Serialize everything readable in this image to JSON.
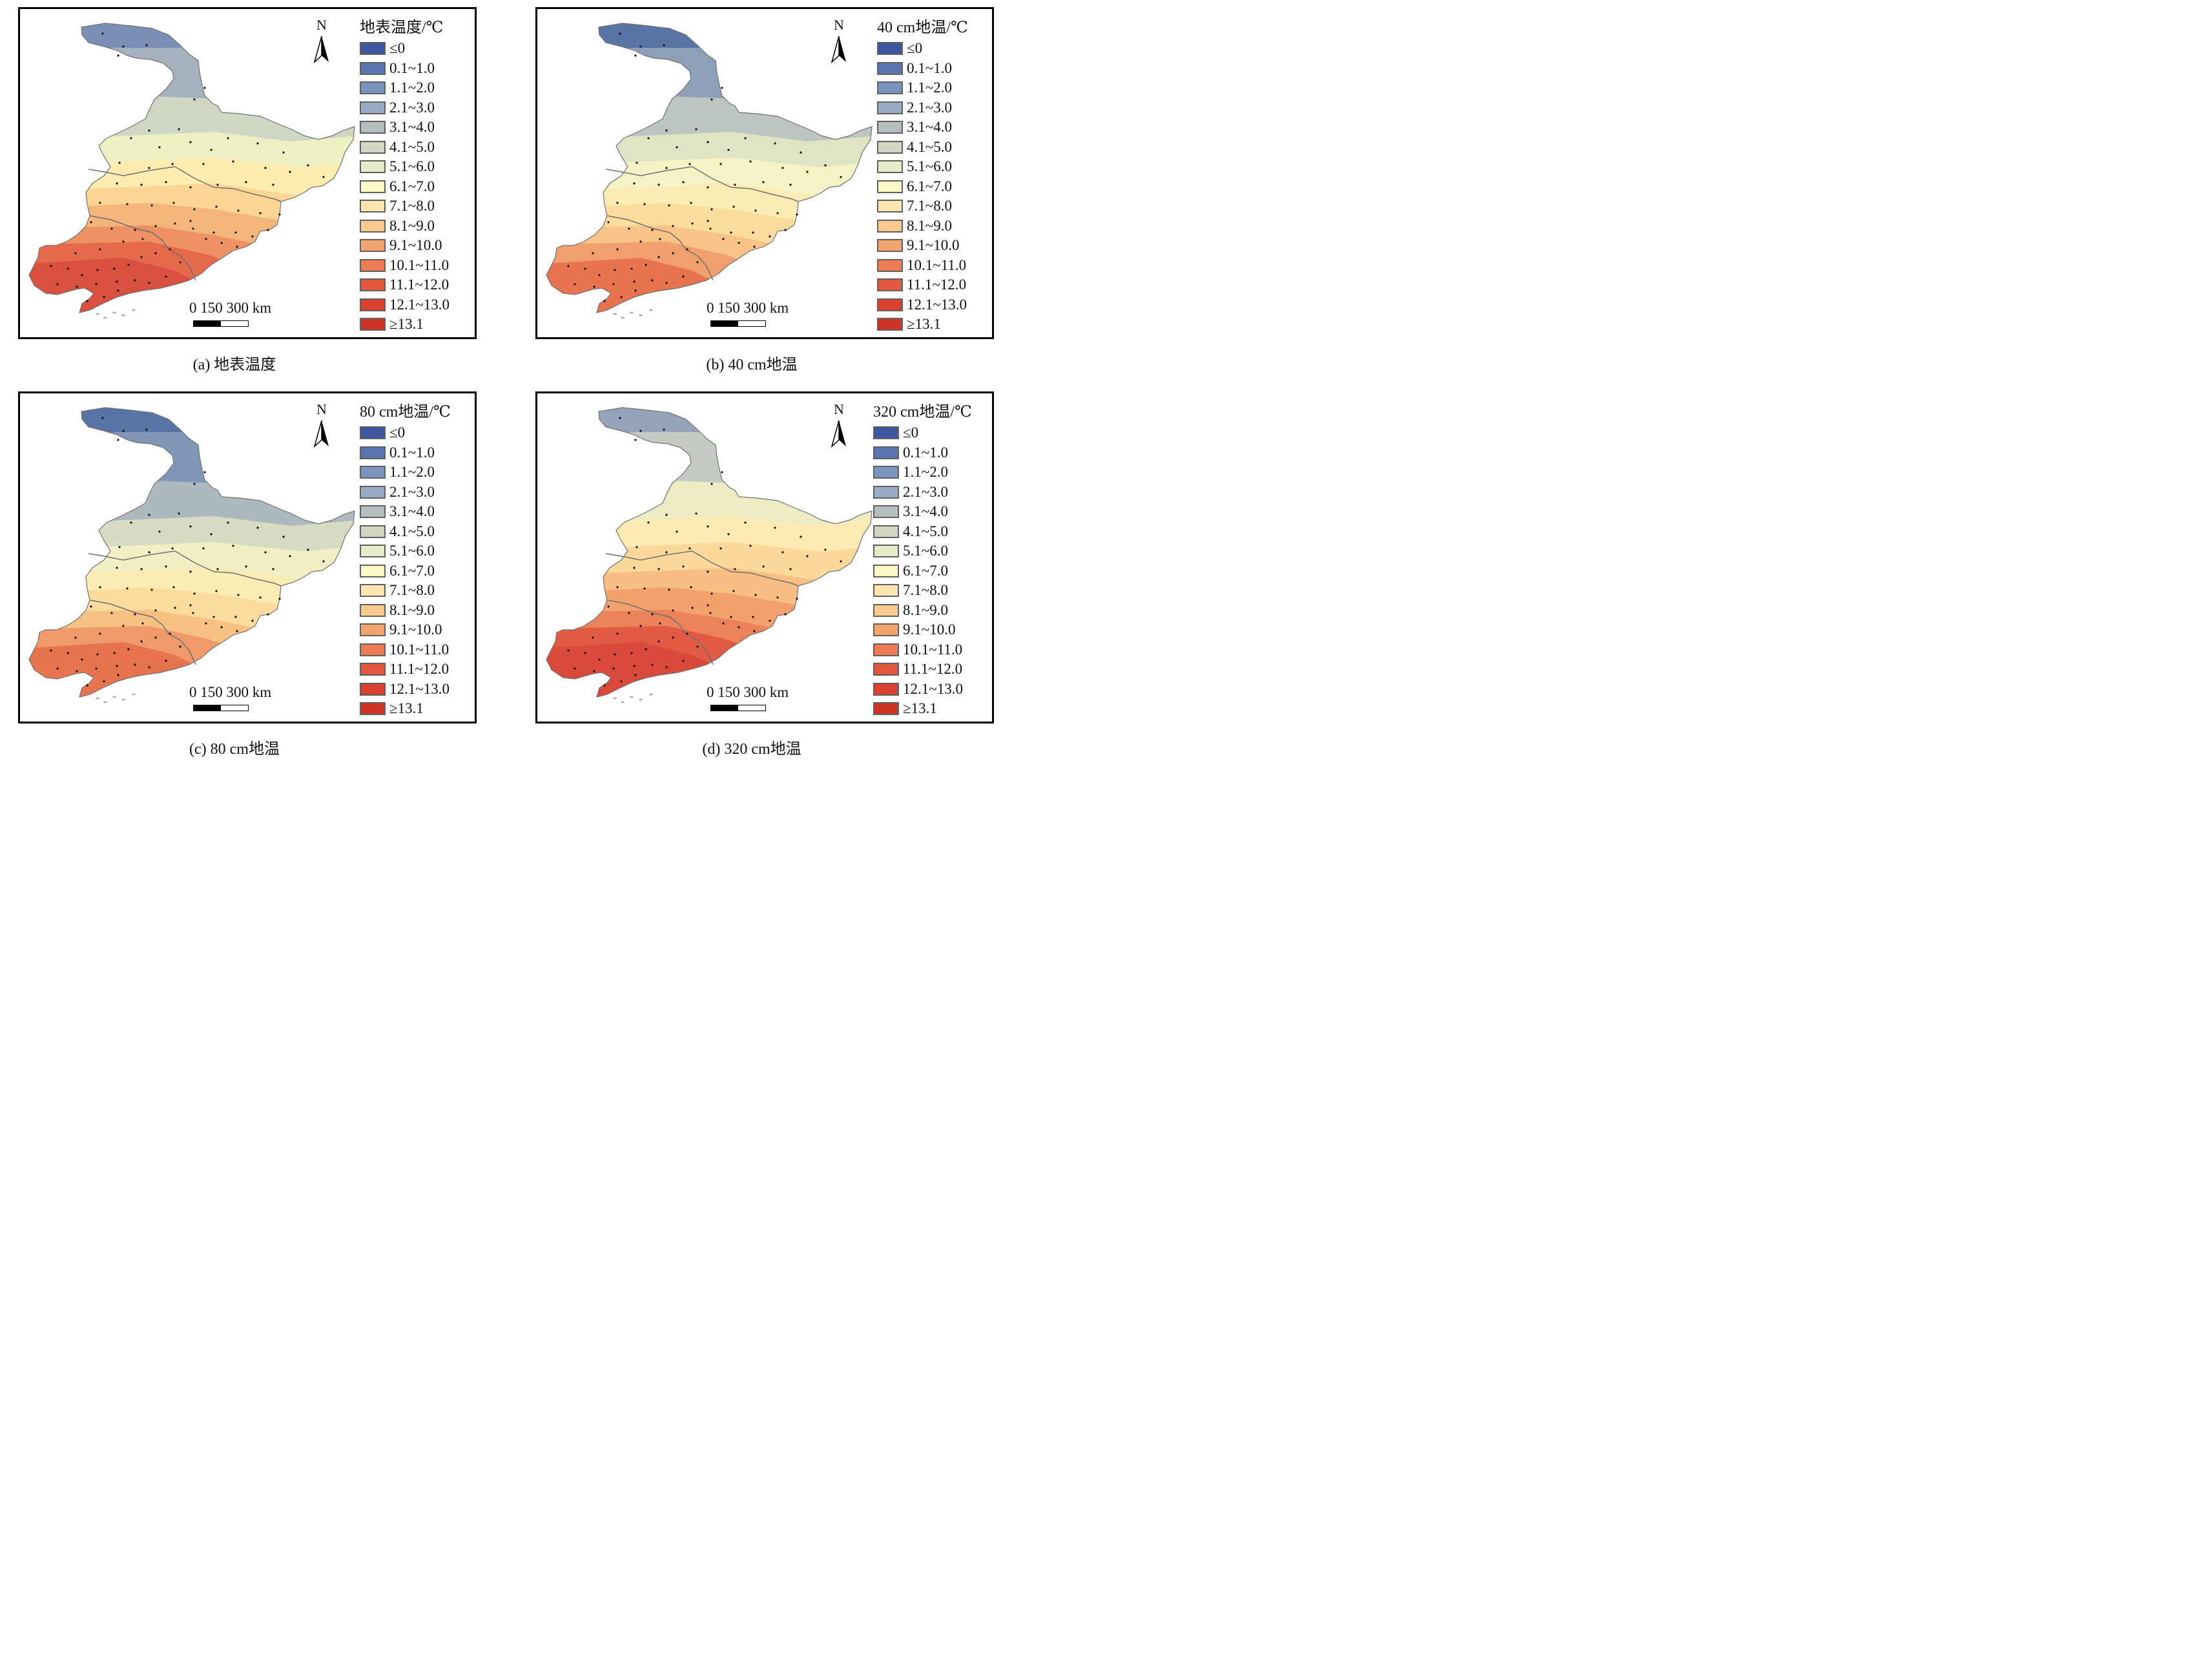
{
  "panels": [
    {
      "id": "a",
      "legend_title": "地表温度/℃",
      "caption": "(a) 地表温度",
      "zone_colors": [
        "#7a8fb3",
        "#a6b1be",
        "#cfd6c4",
        "#eef0c4",
        "#fcecb0",
        "#fbd594",
        "#f4b57a",
        "#ee9164",
        "#e56a4c",
        "#d9503f"
      ]
    },
    {
      "id": "b",
      "legend_title": "40 cm地温/℃",
      "caption": "(b) 40 cm地温",
      "zone_colors": [
        "#5873a6",
        "#8e9fb8",
        "#bcc5c0",
        "#dfe4c4",
        "#f5f2c6",
        "#fbecb3",
        "#fbdc9d",
        "#f7c386",
        "#f0a06c",
        "#e7744f"
      ]
    },
    {
      "id": "c",
      "legend_title": "80 cm地温/℃",
      "caption": "(c) 80 cm地温",
      "zone_colors": [
        "#5873a6",
        "#8097b8",
        "#adb9bf",
        "#d5dcc2",
        "#f1efc3",
        "#fbecb3",
        "#fbdc9d",
        "#f6c183",
        "#ef9a68",
        "#e6744f"
      ]
    },
    {
      "id": "d",
      "legend_title": "320 cm地温/℃",
      "caption": "(d) 320 cm地温",
      "zone_colors": [
        "#94a3b7",
        "#c3cbc2",
        "#eeecc3",
        "#fcecb3",
        "#fbd99a",
        "#f7bf83",
        "#f3a26d",
        "#eb8259",
        "#e05a44",
        "#d94a3b"
      ]
    }
  ],
  "legend": {
    "classes": [
      {
        "label": "≤0",
        "color": "#3e56a0"
      },
      {
        "label": "0.1~1.0",
        "color": "#5a75b0"
      },
      {
        "label": "1.1~2.0",
        "color": "#7b94bd"
      },
      {
        "label": "2.1~3.0",
        "color": "#9aacc3"
      },
      {
        "label": "3.1~4.0",
        "color": "#b6bfbf"
      },
      {
        "label": "4.1~5.0",
        "color": "#d2d6c3"
      },
      {
        "label": "5.1~6.0",
        "color": "#e7ebc7"
      },
      {
        "label": "6.1~7.0",
        "color": "#fcf8c8"
      },
      {
        "label": "7.1~8.0",
        "color": "#fce5ae"
      },
      {
        "label": "8.1~9.0",
        "color": "#f9c98e"
      },
      {
        "label": "9.1~10.0",
        "color": "#f3a56f"
      },
      {
        "label": "10.1~11.0",
        "color": "#ec7b56"
      },
      {
        "label": "11.1~12.0",
        "color": "#e2583f"
      },
      {
        "label": "12.1~13.0",
        "color": "#d9402f"
      },
      {
        "label": "≥13.1",
        "color": "#cf3527"
      }
    ]
  },
  "north_label": "N",
  "scale_label": "0  150 300 km",
  "colors": {
    "border": "#000000",
    "province_line": "#707070",
    "station": "#111111"
  }
}
